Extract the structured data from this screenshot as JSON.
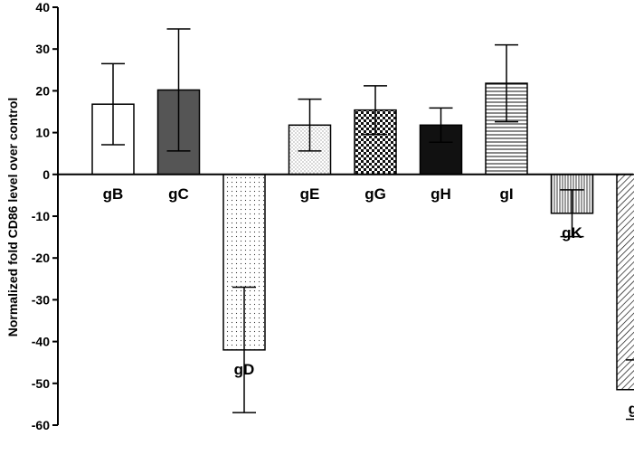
{
  "chart_data": {
    "type": "bar",
    "title": "",
    "xlabel": "",
    "ylabel": "Normalized fold CD86 level over control",
    "ylim": [
      -60,
      40
    ],
    "yticks": [
      40,
      30,
      20,
      10,
      0,
      -10,
      -20,
      -30,
      -40,
      -50,
      -60
    ],
    "grid": false,
    "categories": [
      "gB",
      "gC",
      "gD",
      "gE",
      "gG",
      "gH",
      "gI",
      "gK",
      "gL"
    ],
    "values": [
      16.8,
      20.2,
      -42.0,
      11.8,
      15.4,
      11.8,
      21.8,
      -9.3,
      -51.5
    ],
    "errors": [
      9.7,
      14.6,
      15.0,
      6.2,
      5.8,
      4.1,
      9.2,
      5.6,
      7.1
    ],
    "fills": [
      "white",
      "dark-gray",
      "sparse-dots",
      "fine-dots",
      "checker",
      "black",
      "horizontal-lines",
      "vertical-lines",
      "diagonal-lines"
    ]
  }
}
